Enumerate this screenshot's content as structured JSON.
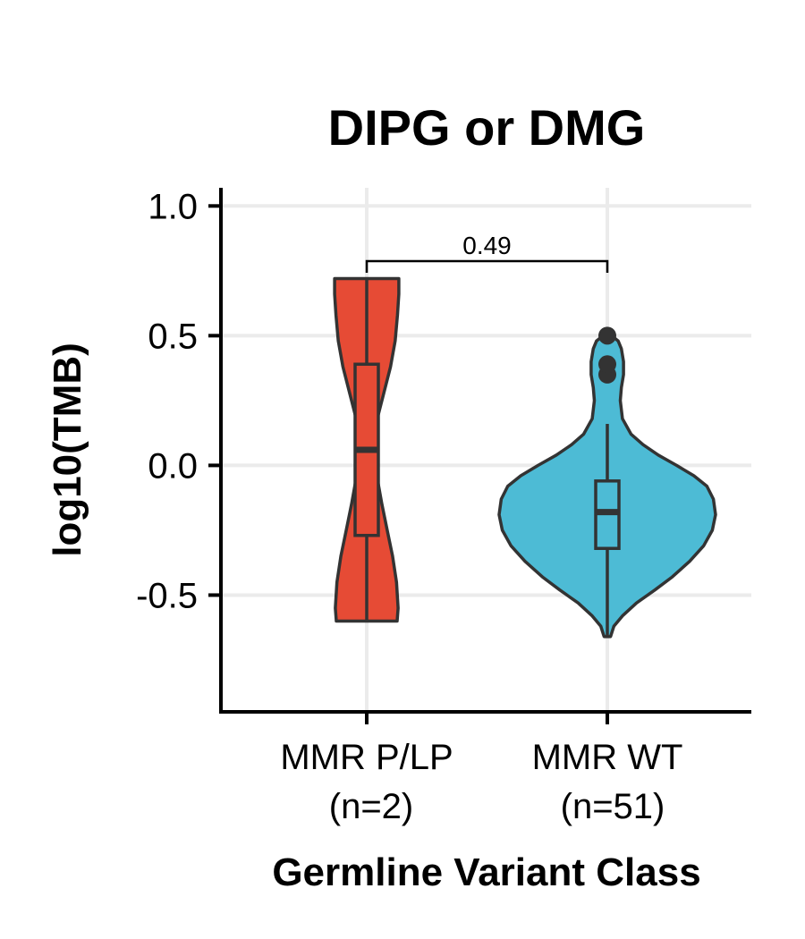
{
  "chart_data": {
    "type": "violin",
    "title": "DIPG or DMG",
    "xlabel": "Germline Variant Class",
    "ylabel": "log10(TMB)",
    "ylim": [
      -0.95,
      1.07
    ],
    "yticks": [
      1.0,
      0.5,
      0.0,
      -0.5
    ],
    "ytick_labels": [
      "1.0",
      "0.5",
      "0.0",
      "-0.5"
    ],
    "grid": true,
    "categories": [
      {
        "label_line1": "MMR P/LP",
        "label_line2": "(n=2)",
        "color": "#E64B35",
        "min": -0.6,
        "q1": -0.27,
        "median": 0.06,
        "q3": 0.39,
        "max": 0.72,
        "outliers": []
      },
      {
        "label_line1": "MMR WT",
        "label_line2": "(n=51)",
        "color": "#4DBBD5",
        "min": -0.66,
        "q1": -0.32,
        "median": -0.18,
        "q3": -0.06,
        "max": 0.16,
        "outliers": [
          0.35,
          0.39,
          0.5
        ]
      }
    ],
    "comparison": {
      "from": 0,
      "to": 1,
      "label": "0.49"
    }
  }
}
